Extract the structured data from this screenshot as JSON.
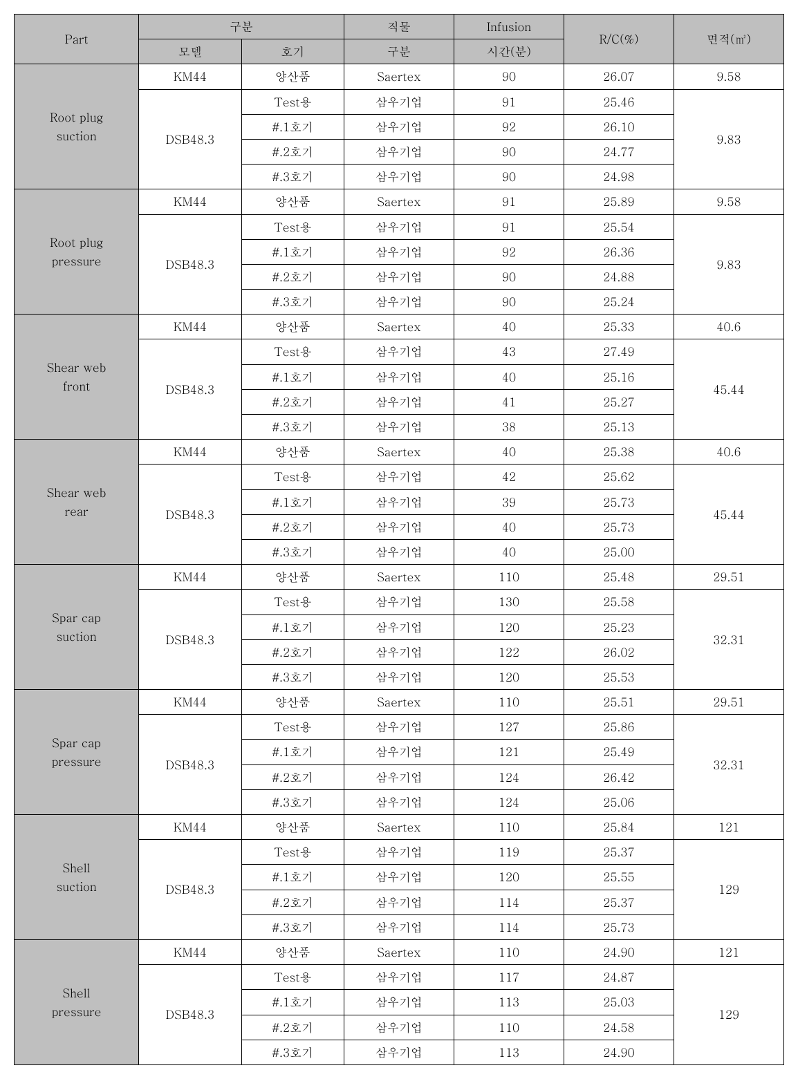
{
  "headers": {
    "part": "Part",
    "gubun": "구분",
    "model": "모델",
    "hogi": "호기",
    "fabric_gubun_l1": "직물",
    "fabric_gubun_l2": "구분",
    "infusion_l1": "Infusion",
    "infusion_l2": "시간(분)",
    "rc": "R/C(%)",
    "area": "면적(㎡)"
  },
  "models": {
    "km44": "KM44",
    "dsb": "DSB48.3"
  },
  "hogi": {
    "prod": "양산품",
    "test": "Test용",
    "h1": "#.1호기",
    "h2": "#.2호기",
    "h3": "#.3호기"
  },
  "fabric": {
    "saertex": "Saertex",
    "samwoo": "삼우기업"
  },
  "parts": [
    {
      "name": "Root plug\nsuction",
      "km44": {
        "time": "90",
        "rc": "26.07",
        "area": "9.58"
      },
      "dsb_area": "9.83",
      "dsb": [
        {
          "time": "91",
          "rc": "25.46"
        },
        {
          "time": "92",
          "rc": "26.10"
        },
        {
          "time": "90",
          "rc": "24.77"
        },
        {
          "time": "90",
          "rc": "24.98"
        }
      ]
    },
    {
      "name": "Root plug\npressure",
      "km44": {
        "time": "91",
        "rc": "25.89",
        "area": "9.58"
      },
      "dsb_area": "9.83",
      "dsb": [
        {
          "time": "91",
          "rc": "25.54"
        },
        {
          "time": "92",
          "rc": "26.36"
        },
        {
          "time": "90",
          "rc": "24.88"
        },
        {
          "time": "90",
          "rc": "25.24"
        }
      ]
    },
    {
      "name": "Shear web\nfront",
      "km44": {
        "time": "40",
        "rc": "25.33",
        "area": "40.6"
      },
      "dsb_area": "45.44",
      "dsb": [
        {
          "time": "43",
          "rc": "27.49"
        },
        {
          "time": "40",
          "rc": "25.16"
        },
        {
          "time": "41",
          "rc": "25.27"
        },
        {
          "time": "38",
          "rc": "25.13"
        }
      ]
    },
    {
      "name": "Shear web\nrear",
      "km44": {
        "time": "40",
        "rc": "25.38",
        "area": "40.6"
      },
      "dsb_area": "45.44",
      "dsb": [
        {
          "time": "42",
          "rc": "25.62"
        },
        {
          "time": "39",
          "rc": "25.73"
        },
        {
          "time": "40",
          "rc": "25.73"
        },
        {
          "time": "40",
          "rc": "25.00"
        }
      ]
    },
    {
      "name": "Spar cap\nsuction",
      "km44": {
        "time": "110",
        "rc": "25.48",
        "area": "29.51"
      },
      "dsb_area": "32.31",
      "dsb": [
        {
          "time": "130",
          "rc": "25.58"
        },
        {
          "time": "120",
          "rc": "25.23"
        },
        {
          "time": "122",
          "rc": "26.02"
        },
        {
          "time": "120",
          "rc": "25.53"
        }
      ]
    },
    {
      "name": "Spar cap\npressure",
      "km44": {
        "time": "110",
        "rc": "25.51",
        "area": "29.51"
      },
      "dsb_area": "32.31",
      "dsb": [
        {
          "time": "127",
          "rc": "25.86"
        },
        {
          "time": "121",
          "rc": "25.49"
        },
        {
          "time": "124",
          "rc": "26.42"
        },
        {
          "time": "124",
          "rc": "25.06"
        }
      ]
    },
    {
      "name": "Shell\nsuction",
      "km44": {
        "time": "110",
        "rc": "25.84",
        "area": "121"
      },
      "dsb_area": "129",
      "dsb": [
        {
          "time": "119",
          "rc": "25.37"
        },
        {
          "time": "120",
          "rc": "25.55"
        },
        {
          "time": "114",
          "rc": "25.37"
        },
        {
          "time": "114",
          "rc": "25.73"
        }
      ]
    },
    {
      "name": "Shell\npressure",
      "km44": {
        "time": "110",
        "rc": "24.90",
        "area": "121"
      },
      "dsb_area": "129",
      "dsb": [
        {
          "time": "117",
          "rc": "24.87"
        },
        {
          "time": "113",
          "rc": "25.03"
        },
        {
          "time": "110",
          "rc": "24.58"
        },
        {
          "time": "113",
          "rc": "24.90"
        }
      ]
    }
  ]
}
